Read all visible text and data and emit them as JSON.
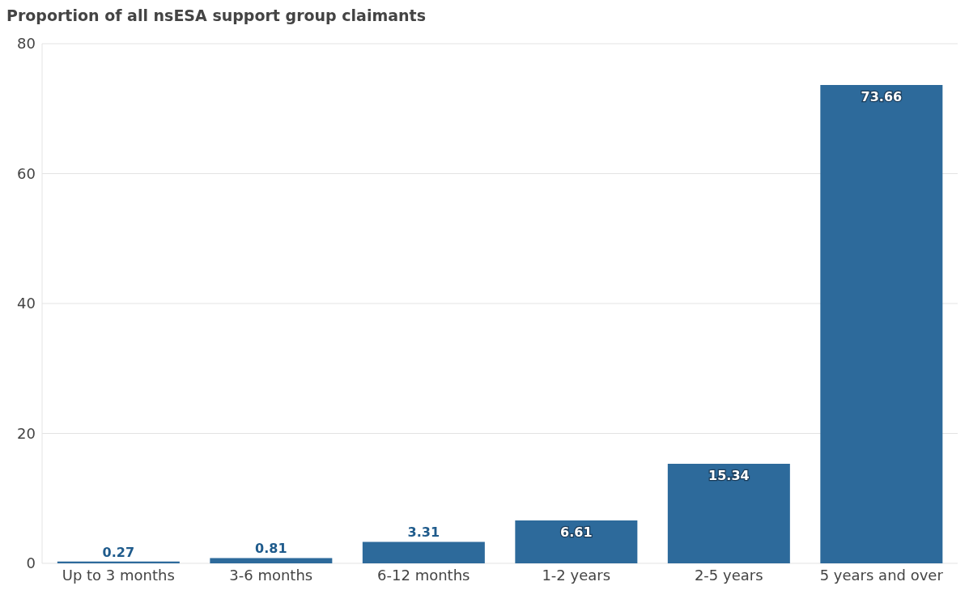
{
  "chart_data": {
    "type": "bar",
    "title": "Proportion of all nsESA support group claimants",
    "categories": [
      "Up to 3 months",
      "3-6 months",
      "6-12 months",
      "1-2 years",
      "2-5 years",
      "5 years and over"
    ],
    "values": [
      0.27,
      0.81,
      3.31,
      6.61,
      15.34,
      73.66
    ],
    "color": "#2d6a9b",
    "ylim": [
      0,
      80
    ],
    "yticks": [
      0,
      20,
      40,
      60,
      80
    ],
    "grid": "y",
    "data_labels": true
  }
}
